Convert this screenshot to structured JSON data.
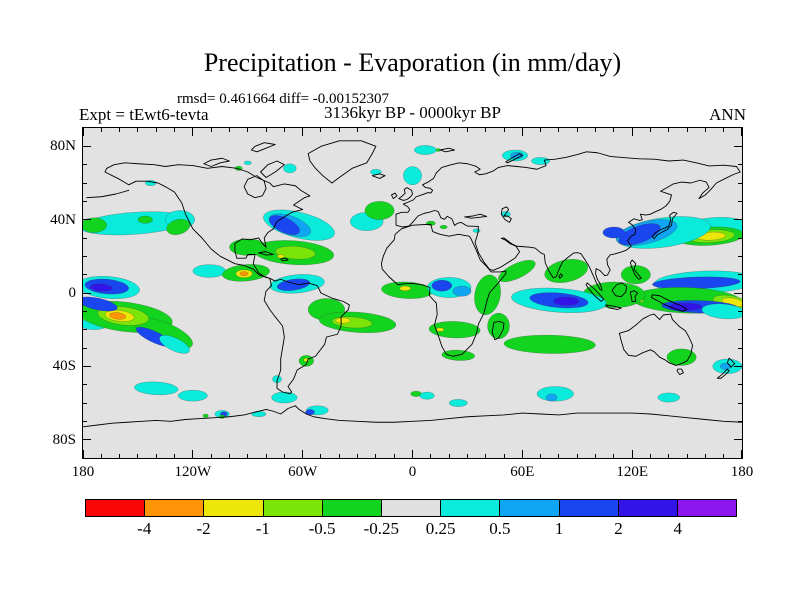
{
  "figure": {
    "title": "Precipitation - Evaporation (in mm/day)",
    "stats_line": "rmsd= 0.461664 diff= -0.00152307",
    "period_line": "3136kyr BP - 0000kyr BP",
    "experiment_label": "Expt = tEwt6-tevta",
    "season_label": "ANN"
  },
  "chart_data": {
    "type": "heatmap",
    "subtype": "filled-contour-world-map",
    "title": "Precipitation - Evaporation (in mm/day)",
    "units": "mm/day",
    "stats": {
      "rmsd": 0.461664,
      "diff": -0.00152307
    },
    "period": "3136kyr BP - 0000kyr BP",
    "experiment": "tEwt6-tevta",
    "season": "ANN",
    "map_background": "#E2E2E2",
    "lon_axis": {
      "range": [
        -180,
        180
      ],
      "tick_lons": [
        -180,
        -120,
        -60,
        0,
        60,
        120,
        180
      ],
      "tick_labels": [
        "180",
        "120W",
        "60W",
        "0",
        "60E",
        "120E",
        "180"
      ],
      "minor_step": 10
    },
    "lat_axis": {
      "range": [
        -90,
        90
      ],
      "tick_lats": [
        80,
        40,
        0,
        -40,
        -80
      ],
      "tick_labels": [
        "80N",
        "40N",
        "0",
        "40S",
        "80S"
      ],
      "minor_step": 10
    },
    "colorbar": {
      "boundary_labels": [
        "-4",
        "-2",
        "-1",
        "-0.5",
        "-0.25",
        "0.25",
        "0.5",
        "1",
        "2",
        "4"
      ],
      "segment_colors": [
        "#F90606",
        "#FF9406",
        "#EDE609",
        "#7BE408",
        "#12D41F",
        "#E0E0E0",
        "#0BEBDC",
        "#0FA5F2",
        "#1A46F0",
        "#3213E8",
        "#8D16EF"
      ],
      "neutral_range": [
        -0.25,
        0.25
      ]
    },
    "palette": {
      "red": "#F90606",
      "orange": "#FF9406",
      "yellow": "#EDE609",
      "ygreen": "#7BE408",
      "green": "#12D41F",
      "neutral": "#E0E0E0",
      "cyan": "#0BEBDC",
      "sky": "#0FA5F2",
      "blue": "#1A46F0",
      "indigo": "#3213E8",
      "violet": "#8D16EF"
    },
    "level_bins": {
      "red": "< -4",
      "orange": "-4 to -2",
      "yellow": "-2 to -1",
      "ygreen": "-1 to -0.5",
      "green": "-0.5 to -0.25",
      "neutral": "-0.25 to 0.25",
      "cyan": "0.25 to 0.5",
      "sky": "0.5 to 1",
      "blue": "1 to 2",
      "indigo": "2 to 4",
      "violet": "> 4"
    },
    "feature_fields": [
      "lon",
      "lat",
      "rx_deg",
      "ry_deg",
      "rotation_deg",
      "level"
    ],
    "anomaly_regions": [
      [
        -152,
        38,
        30,
        6,
        -4,
        "cyan"
      ],
      [
        -127,
        40,
        8,
        5,
        0,
        "cyan"
      ],
      [
        -174,
        37,
        7,
        4,
        0,
        "green"
      ],
      [
        -128,
        36,
        6.5,
        4,
        -15,
        "green"
      ],
      [
        -146,
        40,
        4,
        2,
        0,
        "green"
      ],
      [
        163,
        34,
        21,
        7,
        -6,
        "cyan"
      ],
      [
        162,
        31,
        19,
        5,
        -3,
        "green"
      ],
      [
        163,
        31,
        13,
        3.5,
        -3,
        "ygreen"
      ],
      [
        163,
        31,
        8,
        2.2,
        -3,
        "yellow"
      ],
      [
        137,
        33,
        26,
        8,
        -8,
        "cyan"
      ],
      [
        128,
        33,
        17,
        6,
        -14,
        "sky"
      ],
      [
        124,
        32,
        12,
        4.5,
        -20,
        "blue"
      ],
      [
        110,
        33,
        6,
        3,
        0,
        "blue"
      ],
      [
        -62,
        37,
        20,
        7,
        14,
        "cyan"
      ],
      [
        -67,
        37,
        12,
        5,
        20,
        "sky"
      ],
      [
        -70,
        37,
        9,
        4,
        25,
        "blue"
      ],
      [
        -65,
        22,
        22,
        6.5,
        4,
        "green"
      ],
      [
        -90,
        25,
        10,
        4.5,
        0,
        "green"
      ],
      [
        -64,
        22,
        11,
        3.5,
        4,
        "ygreen"
      ],
      [
        -72,
        20,
        1.8,
        1,
        0,
        "yellow"
      ],
      [
        -25,
        39,
        9,
        5,
        0,
        "cyan"
      ],
      [
        -18,
        45,
        8,
        5,
        0,
        "green"
      ],
      [
        -111,
        12,
        9,
        3.5,
        0,
        "cyan"
      ],
      [
        -91,
        11,
        13,
        4.5,
        -5,
        "green"
      ],
      [
        -92,
        10.5,
        4.5,
        2.2,
        0,
        "yellow"
      ],
      [
        -92,
        10.5,
        2.2,
        1.2,
        0,
        "orange"
      ],
      [
        -166,
        3,
        17,
        6,
        5,
        "cyan"
      ],
      [
        -167,
        3.5,
        12,
        4,
        5,
        "blue"
      ],
      [
        -170,
        3,
        6,
        2,
        5,
        "indigo"
      ],
      [
        160,
        6,
        28,
        6,
        -2,
        "cyan"
      ],
      [
        155,
        5.5,
        24,
        3.2,
        -2,
        "blue"
      ],
      [
        150,
        -4,
        30,
        7,
        2,
        "green"
      ],
      [
        174,
        -5,
        10,
        3.5,
        10,
        "ygreen"
      ],
      [
        175,
        -5,
        6,
        2.2,
        10,
        "yellow"
      ],
      [
        157,
        -7.5,
        21,
        3.4,
        2,
        "blue"
      ],
      [
        149,
        -7.5,
        9,
        2,
        0,
        "indigo"
      ],
      [
        170,
        -10,
        12,
        4,
        5,
        "cyan"
      ],
      [
        122,
        10,
        8,
        5,
        0,
        "green"
      ],
      [
        124,
        -4,
        2,
        1.2,
        0,
        "yellow"
      ],
      [
        110,
        -1,
        17,
        7,
        0,
        "green"
      ],
      [
        -174,
        -17,
        8,
        3,
        0,
        "cyan"
      ],
      [
        -157,
        -13,
        26,
        8,
        7,
        "green"
      ],
      [
        -136,
        -22,
        17,
        6,
        22,
        "green"
      ],
      [
        -158,
        -12.5,
        14,
        5,
        7,
        "ygreen"
      ],
      [
        -160,
        -12.5,
        8,
        3,
        7,
        "yellow"
      ],
      [
        -161,
        -12.5,
        4.5,
        1.8,
        7,
        "orange"
      ],
      [
        -172,
        -6,
        11,
        3.2,
        12,
        "blue"
      ],
      [
        -141,
        -24,
        11,
        3,
        25,
        "blue"
      ],
      [
        -130,
        -28,
        9,
        3.5,
        25,
        "cyan"
      ],
      [
        -63,
        5,
        15,
        5,
        -5,
        "cyan"
      ],
      [
        -65,
        4.5,
        9,
        3,
        -8,
        "blue"
      ],
      [
        -47,
        -9,
        10,
        6,
        0,
        "green"
      ],
      [
        -30,
        -16,
        21,
        5.5,
        4,
        "green"
      ],
      [
        -33,
        -16,
        11,
        3,
        4,
        "ygreen"
      ],
      [
        -38,
        -15,
        4,
        1.5,
        0,
        "yellow"
      ],
      [
        -3,
        1.5,
        14,
        4.5,
        3,
        "green"
      ],
      [
        -4,
        2.5,
        3,
        1.3,
        0,
        "yellow"
      ],
      [
        -58,
        -37,
        4,
        3,
        0,
        "green"
      ],
      [
        -58,
        -36.5,
        1.5,
        0.9,
        0,
        "yellow"
      ],
      [
        -74,
        -47,
        2.5,
        2,
        0,
        "cyan"
      ],
      [
        20,
        3,
        12,
        5.5,
        0,
        "cyan"
      ],
      [
        16,
        4,
        5.5,
        3,
        0,
        "blue"
      ],
      [
        27,
        1,
        5,
        2.8,
        0,
        "sky"
      ],
      [
        41,
        -1,
        7,
        11,
        10,
        "green"
      ],
      [
        57,
        12,
        11,
        4,
        -25,
        "green"
      ],
      [
        23,
        -20,
        14,
        4.5,
        2,
        "green"
      ],
      [
        15,
        -20,
        2.2,
        1,
        0,
        "yellow"
      ],
      [
        25,
        -34,
        9,
        2.8,
        3,
        "green"
      ],
      [
        47,
        -18,
        6,
        7,
        0,
        "green"
      ],
      [
        80,
        -4,
        26,
        6.5,
        4,
        "cyan"
      ],
      [
        80,
        -4,
        16,
        4,
        5,
        "blue"
      ],
      [
        84,
        -4.5,
        7,
        2.3,
        0,
        "indigo"
      ],
      [
        84,
        12,
        12,
        6,
        -12,
        "green"
      ],
      [
        75,
        -28,
        25,
        5,
        1,
        "green"
      ],
      [
        147,
        -35,
        8,
        4.5,
        0,
        "green"
      ],
      [
        172,
        -40,
        8,
        4,
        0,
        "cyan"
      ],
      [
        171,
        -40,
        3,
        1.8,
        0,
        "sky"
      ],
      [
        -140,
        -52,
        12,
        3.5,
        3,
        "cyan"
      ],
      [
        -120,
        -56,
        8,
        3,
        0,
        "cyan"
      ],
      [
        -70,
        -57,
        7,
        3,
        0,
        "cyan"
      ],
      [
        -52,
        -64,
        6,
        2.5,
        0,
        "cyan"
      ],
      [
        -56,
        -65,
        2.5,
        1.5,
        0,
        "blue"
      ],
      [
        -84,
        -66,
        4,
        1.5,
        0,
        "cyan"
      ],
      [
        -104,
        -66,
        4,
        2,
        0,
        "cyan"
      ],
      [
        -103,
        -66,
        2,
        1.2,
        0,
        "blue"
      ],
      [
        -113,
        -67,
        1.5,
        1,
        0,
        "green"
      ],
      [
        -104,
        -67.5,
        1.5,
        1,
        0,
        "green"
      ],
      [
        78,
        -55,
        10,
        4,
        0,
        "cyan"
      ],
      [
        76,
        -57,
        3,
        2,
        0,
        "sky"
      ],
      [
        25,
        -60,
        5,
        2,
        0,
        "cyan"
      ],
      [
        140,
        -57,
        6,
        2.5,
        0,
        "cyan"
      ],
      [
        2,
        -55,
        3,
        1.5,
        0,
        "green"
      ],
      [
        8,
        -56,
        4,
        2,
        0,
        "cyan"
      ],
      [
        0,
        64,
        5,
        5,
        0,
        "cyan"
      ],
      [
        7,
        78,
        6,
        2.5,
        0,
        "cyan"
      ],
      [
        14,
        78,
        1.2,
        0.8,
        0,
        "green"
      ],
      [
        56,
        75,
        7,
        3,
        0,
        "cyan"
      ],
      [
        57,
        75,
        3.5,
        1.8,
        0,
        "sky"
      ],
      [
        70,
        72,
        5,
        2,
        0,
        "cyan"
      ],
      [
        -67,
        68,
        3.5,
        2.5,
        0,
        "cyan"
      ],
      [
        -143,
        60,
        3,
        1.5,
        0,
        "cyan"
      ],
      [
        -95,
        68,
        2,
        1.2,
        0,
        "green"
      ],
      [
        -90,
        71,
        2,
        1,
        0,
        "cyan"
      ],
      [
        -20,
        66,
        3,
        1.5,
        0,
        "cyan"
      ],
      [
        10,
        38,
        2.5,
        1.2,
        0,
        "green"
      ],
      [
        17,
        36,
        2,
        1,
        0,
        "green"
      ],
      [
        51,
        43,
        2.5,
        1.5,
        0,
        "cyan"
      ],
      [
        35,
        34,
        2,
        1,
        0,
        "cyan"
      ]
    ]
  },
  "colors": {
    "background": "#FFFFFF",
    "map_background": "#E2E2E2",
    "frame": "#000000"
  }
}
